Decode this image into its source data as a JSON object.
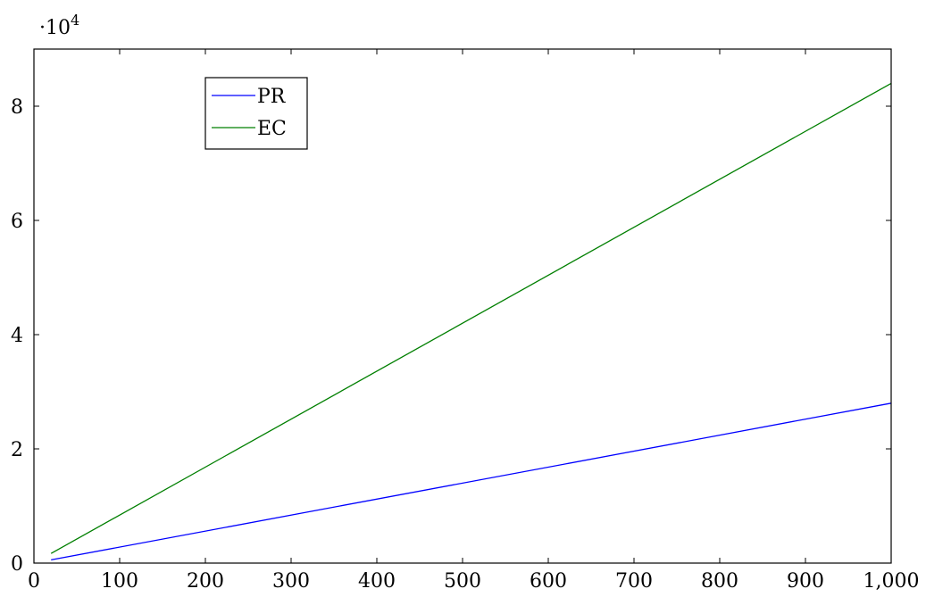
{
  "chart_data": {
    "type": "line",
    "title": "",
    "xlabel": "",
    "ylabel": "",
    "y_scale_factor_label": "·10",
    "y_scale_exponent": "4",
    "xlim": [
      0,
      1000
    ],
    "ylim": [
      0,
      90000
    ],
    "x_ticks": [
      0,
      100,
      200,
      300,
      400,
      500,
      600,
      700,
      800,
      900,
      1000
    ],
    "x_tick_labels": [
      "0",
      "100",
      "200",
      "300",
      "400",
      "500",
      "600",
      "700",
      "800",
      "900",
      "1,000"
    ],
    "y_ticks": [
      0,
      20000,
      40000,
      60000,
      80000
    ],
    "y_tick_labels": [
      "0",
      "2",
      "4",
      "6",
      "8"
    ],
    "grid": false,
    "legend_placement": "top-left",
    "series": [
      {
        "name": "PR",
        "color": "#0000ff",
        "x": [
          20,
          1000
        ],
        "y": [
          560,
          28000
        ]
      },
      {
        "name": "EC",
        "color": "#007f00",
        "x": [
          20,
          1000
        ],
        "y": [
          1680,
          84000
        ]
      }
    ]
  }
}
